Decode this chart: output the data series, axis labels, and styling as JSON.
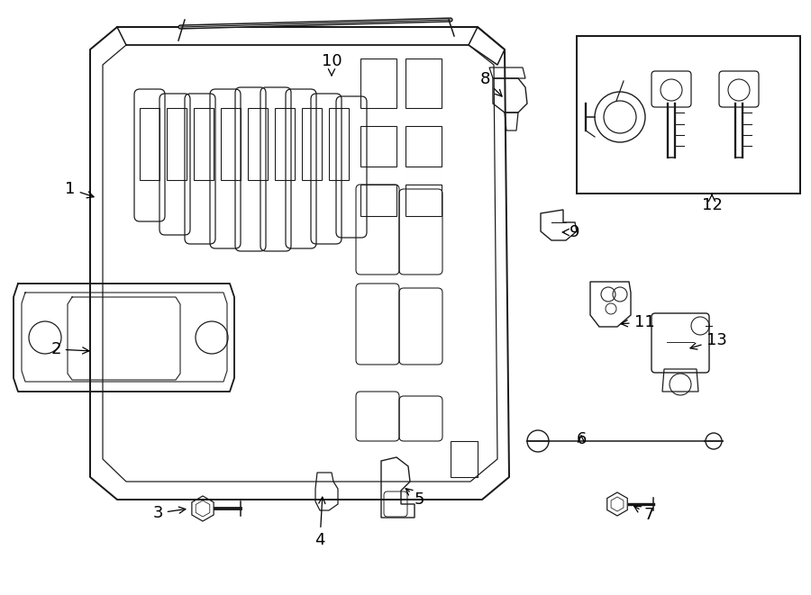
{
  "background_color": "#ffffff",
  "line_color": "#1a1a1a",
  "figsize": [
    9.0,
    6.61
  ],
  "dpi": 100
}
